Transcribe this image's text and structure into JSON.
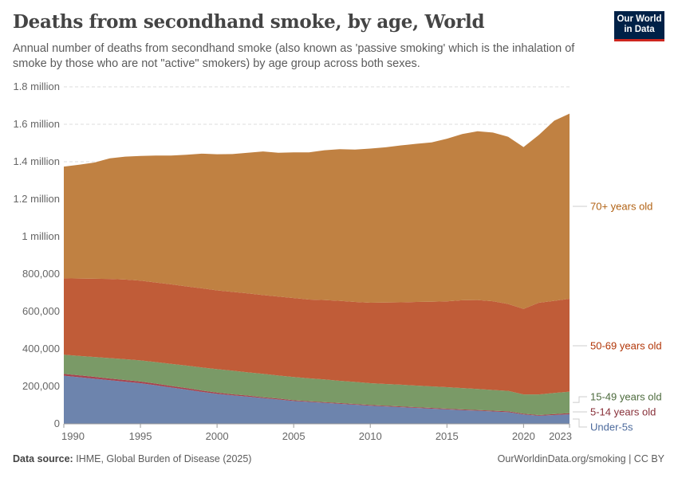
{
  "header": {
    "title": "Deaths from secondhand smoke, by age, World",
    "subtitle": "Annual number of deaths from secondhand smoke (also known as 'passive smoking' which is the inhalation of smoke by those who are not \"active\" smokers) by age group across both sexes.",
    "logo_text": "Our World in Data"
  },
  "footer": {
    "source_label": "Data source:",
    "source": "IHME, Global Burden of Disease (2025)",
    "credit": "OurWorldinData.org/smoking | CC BY"
  },
  "chart_data": {
    "type": "area",
    "stacked": true,
    "grid": true,
    "legend_placement": "right (inline labels)",
    "ylim": [
      0,
      1800000
    ],
    "y_ticks": [
      0,
      200000,
      400000,
      600000,
      800000,
      1000000,
      1200000,
      1400000,
      1600000,
      1800000
    ],
    "y_tick_labels": [
      "0",
      "200,000",
      "400,000",
      "600,000",
      "800,000",
      "1 million",
      "1.2 million",
      "1.4 million",
      "1.6 million",
      "1.8 million"
    ],
    "x_ticks": [
      1990,
      1995,
      2000,
      2005,
      2010,
      2015,
      2020,
      2023
    ],
    "x_tick_labels": [
      "1990",
      "1995",
      "2000",
      "2005",
      "2010",
      "2015",
      "2020",
      "2023"
    ],
    "x": [
      1990,
      1991,
      1992,
      1993,
      1994,
      1995,
      1996,
      1997,
      1998,
      1999,
      2000,
      2001,
      2002,
      2003,
      2004,
      2005,
      2006,
      2007,
      2008,
      2009,
      2010,
      2011,
      2012,
      2013,
      2014,
      2015,
      2016,
      2017,
      2018,
      2019,
      2020,
      2021,
      2022,
      2023
    ],
    "series": [
      {
        "name": "Under-5s",
        "color": "#6d84ad",
        "label_color": "#4c6a9c",
        "values": [
          257000,
          249000,
          241000,
          233000,
          225000,
          217000,
          206000,
          194000,
          183000,
          171000,
          160000,
          152000,
          145000,
          137000,
          130000,
          122000,
          117000,
          112000,
          107000,
          102000,
          97000,
          93000,
          89000,
          85000,
          81000,
          77000,
          73000,
          70000,
          66000,
          62000,
          50000,
          43000,
          47000,
          51000
        ]
      },
      {
        "name": "5-14 years old",
        "color": "#a7434f",
        "label_color": "#883039",
        "values": [
          10000,
          10000,
          10000,
          9000,
          9000,
          9000,
          9000,
          8000,
          8000,
          7000,
          7000,
          6000,
          6000,
          5000,
          5000,
          4000,
          4000,
          4000,
          4000,
          4000,
          4000,
          4000,
          4000,
          4000,
          4000,
          4000,
          4000,
          4000,
          4000,
          5000,
          4000,
          4000,
          5000,
          6000
        ]
      },
      {
        "name": "15-49 years old",
        "color": "#7a9a67",
        "label_color": "#4c6a3c",
        "values": [
          102000,
          104000,
          106000,
          109000,
          111000,
          113000,
          115000,
          118000,
          120000,
          123000,
          125000,
          126000,
          124000,
          125000,
          123000,
          124000,
          122000,
          121000,
          119000,
          118000,
          116000,
          116000,
          116000,
          115000,
          115000,
          115000,
          114000,
          112000,
          111000,
          109000,
          103000,
          110000,
          113000,
          115000
        ]
      },
      {
        "name": "50-69 years old",
        "color": "#c05c38",
        "label_color": "#b13507",
        "values": [
          408000,
          413000,
          418000,
          423000,
          426000,
          426000,
          425000,
          425000,
          423000,
          423000,
          421000,
          421000,
          422000,
          421000,
          422000,
          422000,
          421000,
          424000,
          427000,
          427000,
          430000,
          435000,
          440000,
          447000,
          452000,
          458000,
          469000,
          475000,
          474000,
          464000,
          457000,
          490000,
          492000,
          496000
        ]
      },
      {
        "name": "70+ years old",
        "color": "#c08142",
        "label_color": "#b16214",
        "values": [
          597000,
          608000,
          621000,
          644000,
          656000,
          666000,
          678000,
          688000,
          703000,
          719000,
          727000,
          736000,
          751000,
          767000,
          768000,
          778000,
          786000,
          800000,
          810000,
          814000,
          823000,
          829000,
          838000,
          845000,
          851000,
          869000,
          888000,
          902000,
          901000,
          893000,
          864000,
          896000,
          962000,
          989000
        ]
      }
    ]
  }
}
